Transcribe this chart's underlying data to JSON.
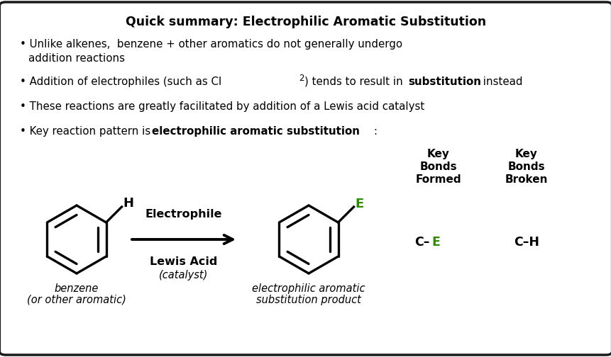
{
  "title": "Quick summary: Electrophilic Aromatic Substitution",
  "bg_color": "#ffffff",
  "border_color": "#1a1a1a",
  "text_color": "#000000",
  "green_color": "#2e8b00",
  "label_benzene": "benzene",
  "label_benzene2": "(or other aromatic)",
  "label_electrophile": "Electrophile",
  "label_lewis": "Lewis Acid",
  "label_catalyst": "(catalyst)",
  "label_product": "electrophilic aromatic",
  "label_product2": "substitution product",
  "key_bonds_formed": [
    "Key",
    "Bonds",
    "Formed"
  ],
  "key_bonds_broken": [
    "Key",
    "Bonds",
    "Broken"
  ],
  "ce_bond_c": "C–",
  "ce_bond_e": "E",
  "ch_bond": "C–H",
  "figw": 8.62,
  "figh": 5.04,
  "dpi": 100
}
